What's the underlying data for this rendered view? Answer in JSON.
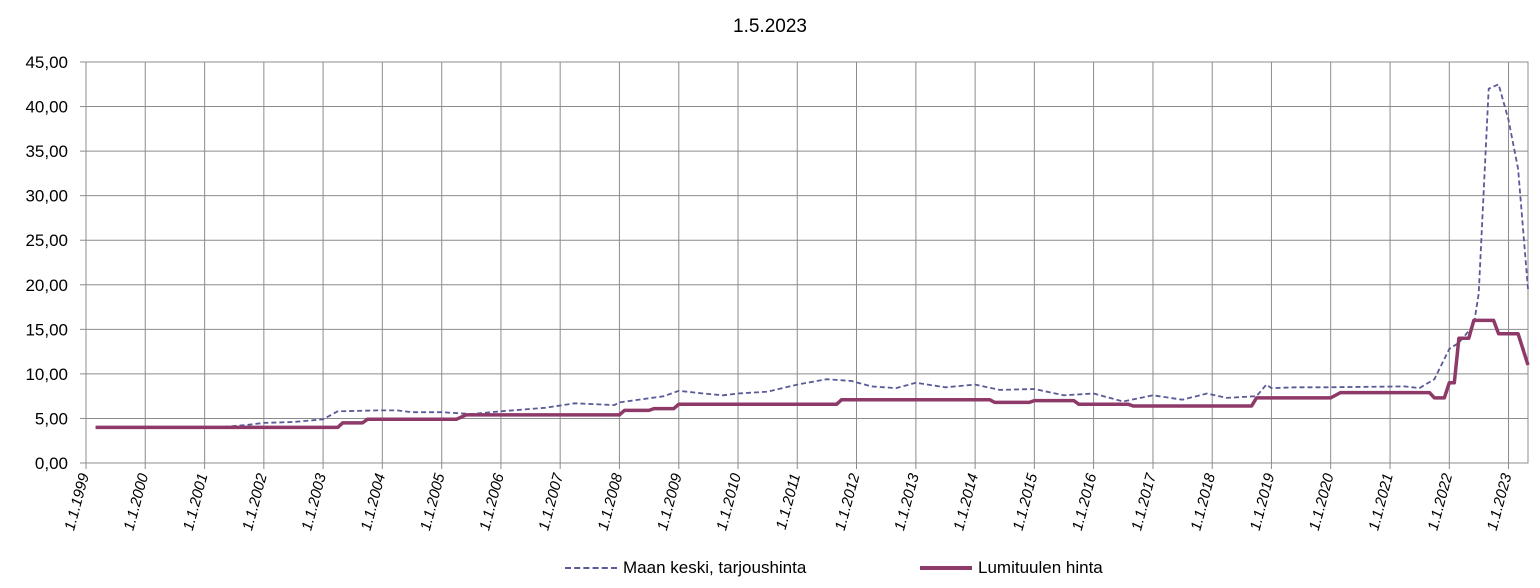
{
  "chart_data": {
    "type": "line",
    "title": "1.5.2023",
    "xlabel": "",
    "ylabel": "",
    "x_ticks": [
      "1.1.1999",
      "1.1.2000",
      "1.1.2001",
      "1.1.2002",
      "1.1.2003",
      "1.1.2004",
      "1.1.2005",
      "1.1.2006",
      "1.1.2007",
      "1.1.2008",
      "1.1.2009",
      "1.1.2010",
      "1.1.2011",
      "1.1.2012",
      "1.1.2013",
      "1.1.2014",
      "1.1.2015",
      "1.1.2016",
      "1.1.2017",
      "1.1.2018",
      "1.1.2019",
      "1.1.2020",
      "1.1.2021",
      "1.1.2022",
      "1.1.2023"
    ],
    "y_ticks": [
      "0,00",
      "5,00",
      "10,00",
      "15,00",
      "20,00",
      "25,00",
      "30,00",
      "35,00",
      "40,00",
      "45,00"
    ],
    "xlim": [
      "1999-01-01",
      "2023-05-01"
    ],
    "ylim": [
      0,
      45
    ],
    "grid": true,
    "legend_position": "bottom",
    "series": [
      {
        "name": "Maan keski, tarjoushinta",
        "color": "#5a5a98",
        "style": "dashed",
        "points": [
          [
            "1999-03-01",
            4.0
          ],
          [
            "2001-04-01",
            4.0
          ],
          [
            "2001-10-01",
            4.3
          ],
          [
            "2002-01-01",
            4.5
          ],
          [
            "2002-07-01",
            4.6
          ],
          [
            "2003-01-01",
            4.9
          ],
          [
            "2003-04-01",
            5.8
          ],
          [
            "2003-12-01",
            5.9
          ],
          [
            "2004-04-01",
            5.9
          ],
          [
            "2004-07-01",
            5.7
          ],
          [
            "2005-01-01",
            5.7
          ],
          [
            "2005-07-01",
            5.5
          ],
          [
            "2006-01-01",
            5.8
          ],
          [
            "2006-10-01",
            6.2
          ],
          [
            "2007-04-01",
            6.7
          ],
          [
            "2007-12-01",
            6.5
          ],
          [
            "2008-01-01",
            6.8
          ],
          [
            "2008-10-01",
            7.5
          ],
          [
            "2009-01-01",
            8.1
          ],
          [
            "2009-06-01",
            7.8
          ],
          [
            "2009-10-01",
            7.6
          ],
          [
            "2010-01-01",
            7.8
          ],
          [
            "2010-07-01",
            8.0
          ],
          [
            "2011-01-01",
            8.8
          ],
          [
            "2011-07-01",
            9.4
          ],
          [
            "2011-12-01",
            9.2
          ],
          [
            "2012-04-01",
            8.6
          ],
          [
            "2012-09-01",
            8.4
          ],
          [
            "2013-01-01",
            9.0
          ],
          [
            "2013-07-01",
            8.5
          ],
          [
            "2014-01-01",
            8.8
          ],
          [
            "2014-06-01",
            8.2
          ],
          [
            "2015-01-01",
            8.3
          ],
          [
            "2015-07-01",
            7.6
          ],
          [
            "2016-01-01",
            7.8
          ],
          [
            "2016-07-01",
            6.9
          ],
          [
            "2017-01-01",
            7.6
          ],
          [
            "2017-07-01",
            7.1
          ],
          [
            "2017-12-01",
            7.8
          ],
          [
            "2018-04-01",
            7.3
          ],
          [
            "2018-10-01",
            7.5
          ],
          [
            "2018-12-01",
            8.8
          ],
          [
            "2019-01-01",
            8.4
          ],
          [
            "2019-06-01",
            8.5
          ],
          [
            "2019-12-01",
            8.5
          ],
          [
            "2021-04-01",
            8.6
          ],
          [
            "2021-07-01",
            8.4
          ],
          [
            "2021-10-01",
            9.4
          ],
          [
            "2022-01-01",
            12.8
          ],
          [
            "2022-03-01",
            13.5
          ],
          [
            "2022-06-01",
            15.5
          ],
          [
            "2022-07-01",
            19.0
          ],
          [
            "2022-09-01",
            42.0
          ],
          [
            "2022-11-01",
            42.5
          ],
          [
            "2023-01-01",
            38.5
          ],
          [
            "2023-03-01",
            33.0
          ],
          [
            "2023-05-01",
            19.5
          ]
        ]
      },
      {
        "name": "Lumituulen hinta",
        "color": "#8e3a68",
        "style": "solid",
        "points": [
          [
            "1999-03-01",
            4.0
          ],
          [
            "2003-04-01",
            4.0
          ],
          [
            "2003-05-01",
            4.5
          ],
          [
            "2003-09-01",
            4.5
          ],
          [
            "2003-10-01",
            4.9
          ],
          [
            "2005-04-01",
            4.9
          ],
          [
            "2005-06-01",
            5.4
          ],
          [
            "2008-01-01",
            5.4
          ],
          [
            "2008-02-01",
            5.9
          ],
          [
            "2008-07-01",
            5.9
          ],
          [
            "2008-08-01",
            6.1
          ],
          [
            "2008-12-01",
            6.1
          ],
          [
            "2009-01-01",
            6.6
          ],
          [
            "2011-09-01",
            6.6
          ],
          [
            "2011-10-01",
            7.1
          ],
          [
            "2014-04-01",
            7.1
          ],
          [
            "2014-05-01",
            6.8
          ],
          [
            "2014-12-01",
            6.8
          ],
          [
            "2015-01-01",
            7.0
          ],
          [
            "2015-09-01",
            7.0
          ],
          [
            "2015-10-01",
            6.6
          ],
          [
            "2016-08-01",
            6.6
          ],
          [
            "2016-09-01",
            6.4
          ],
          [
            "2018-09-01",
            6.4
          ],
          [
            "2018-10-01",
            7.3
          ],
          [
            "2020-01-01",
            7.3
          ],
          [
            "2020-03-01",
            7.9
          ],
          [
            "2021-09-01",
            7.9
          ],
          [
            "2021-10-01",
            7.3
          ],
          [
            "2021-12-01",
            7.3
          ],
          [
            "2022-01-01",
            9.0
          ],
          [
            "2022-02-01",
            9.0
          ],
          [
            "2022-03-01",
            14.0
          ],
          [
            "2022-05-01",
            14.0
          ],
          [
            "2022-06-01",
            16.0
          ],
          [
            "2022-10-01",
            16.0
          ],
          [
            "2022-11-01",
            14.5
          ],
          [
            "2023-03-01",
            14.5
          ],
          [
            "2023-05-01",
            11.0
          ]
        ]
      }
    ]
  }
}
